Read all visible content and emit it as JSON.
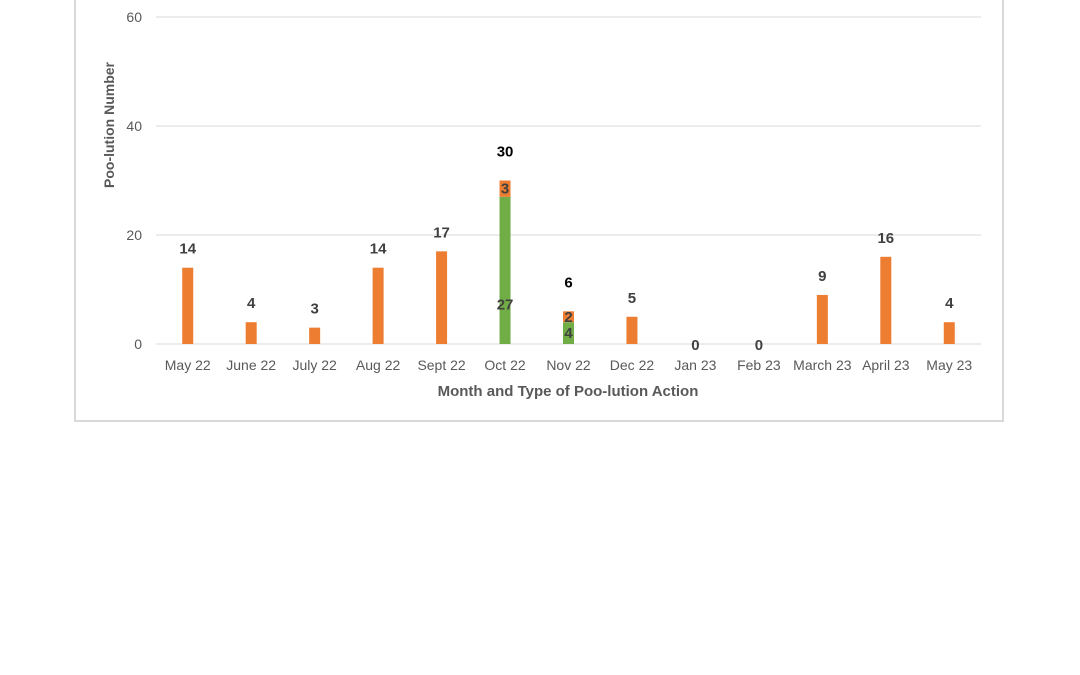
{
  "chart_data": {
    "type": "bar",
    "title": "",
    "xlabel": "Month and Type of Poo-lution Action",
    "ylabel": "Poo-lution Number",
    "ylim": [
      0,
      60
    ],
    "yticks": [
      "0",
      "20",
      "40",
      "60"
    ],
    "grid": true,
    "stacked": true,
    "categories": [
      "May 22",
      "June 22",
      "July 22",
      "Aug 22",
      "Sept 22",
      "Oct 22",
      "Nov 22",
      "Dec 22",
      "Jan 23",
      "Feb 23",
      "March 23",
      "April 23",
      "May 23"
    ],
    "series": [
      {
        "values": [
          0,
          0,
          0,
          0,
          0,
          27,
          4,
          0,
          0,
          0,
          0,
          0,
          0
        ],
        "color": "#70ad47"
      },
      {
        "values": [
          14,
          4,
          3,
          14,
          17,
          3,
          2,
          5,
          0,
          0,
          9,
          16,
          4
        ],
        "color": "#ed7d31"
      }
    ],
    "segment_labels": [
      [
        null,
        null,
        null,
        null,
        null,
        "27",
        "4",
        null,
        null,
        null,
        null,
        null,
        null
      ],
      [
        "14",
        "4",
        "3",
        "14",
        "17",
        "3",
        "2",
        "5",
        "0",
        "0",
        "9",
        "16",
        "4"
      ]
    ],
    "total_labels": [
      null,
      null,
      null,
      null,
      null,
      "30",
      "6",
      null,
      null,
      null,
      null,
      null,
      null
    ],
    "colors": {
      "grid": "#d9d9d9",
      "text": "#595959",
      "label": "#404040",
      "total": "#000000"
    }
  }
}
